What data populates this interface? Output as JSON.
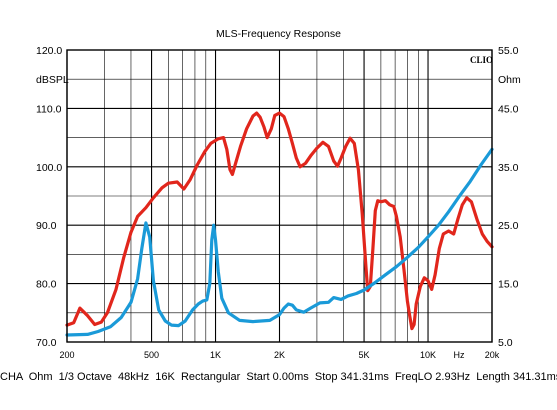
{
  "chart_data": {
    "type": "line",
    "title": "MLS-Frequency Response",
    "brand": "CLIO",
    "left_axis": {
      "unit": "dBSPL",
      "range": [
        70,
        120
      ],
      "ticks": [
        {
          "value": 120,
          "label": "120.0"
        },
        {
          "value": 110,
          "label": "110.0"
        },
        {
          "value": 100,
          "label": "100.0"
        },
        {
          "value": 90,
          "label": "90.0"
        },
        {
          "value": 80,
          "label": "80.0"
        },
        {
          "value": 70,
          "label": "70.0"
        }
      ]
    },
    "right_axis": {
      "unit": "Ohm",
      "range": [
        5,
        55
      ],
      "ticks": [
        {
          "value": 55,
          "label": "55.0"
        },
        {
          "value": 45,
          "label": "45.0"
        },
        {
          "value": 35,
          "label": "35.0"
        },
        {
          "value": 25,
          "label": "25.0"
        },
        {
          "value": 15,
          "label": "15.0"
        },
        {
          "value": 5,
          "label": "5.0"
        }
      ]
    },
    "x_axis": {
      "scale": "log",
      "unit": "Hz",
      "range": [
        200,
        20000
      ],
      "ticks": [
        {
          "value": 200,
          "label": "200"
        },
        {
          "value": 500,
          "label": "500"
        },
        {
          "value": 1000,
          "label": "1K"
        },
        {
          "value": 2000,
          "label": "2K"
        },
        {
          "value": 5000,
          "label": "5K"
        },
        {
          "value": 10000,
          "label": "10K"
        },
        {
          "value": 20000,
          "label": "20k"
        }
      ],
      "grid": true
    },
    "series": [
      {
        "axis": "left",
        "color": "#e1261c",
        "points": [
          [
            200,
            72.9
          ],
          [
            215,
            73.3
          ],
          [
            230,
            75.8
          ],
          [
            250,
            74.5
          ],
          [
            270,
            73.0
          ],
          [
            290,
            73.4
          ],
          [
            310,
            75.0
          ],
          [
            340,
            79.0
          ],
          [
            370,
            84.5
          ],
          [
            400,
            88.8
          ],
          [
            430,
            91.5
          ],
          [
            470,
            93.0
          ],
          [
            510,
            94.7
          ],
          [
            560,
            96.4
          ],
          [
            600,
            97.2
          ],
          [
            660,
            97.4
          ],
          [
            710,
            96.2
          ],
          [
            760,
            97.8
          ],
          [
            820,
            100.3
          ],
          [
            890,
            102.6
          ],
          [
            950,
            104.0
          ],
          [
            1030,
            104.8
          ],
          [
            1090,
            105.0
          ],
          [
            1130,
            103.0
          ],
          [
            1170,
            99.5
          ],
          [
            1200,
            98.7
          ],
          [
            1240,
            100.5
          ],
          [
            1310,
            103.5
          ],
          [
            1400,
            106.5
          ],
          [
            1500,
            108.7
          ],
          [
            1560,
            109.2
          ],
          [
            1620,
            108.5
          ],
          [
            1690,
            106.8
          ],
          [
            1750,
            105.0
          ],
          [
            1830,
            106.5
          ],
          [
            1900,
            108.8
          ],
          [
            2000,
            109.2
          ],
          [
            2100,
            108.6
          ],
          [
            2200,
            106.5
          ],
          [
            2300,
            104.0
          ],
          [
            2400,
            101.5
          ],
          [
            2500,
            100.0
          ],
          [
            2650,
            100.6
          ],
          [
            2820,
            102.0
          ],
          [
            3000,
            103.2
          ],
          [
            3200,
            104.2
          ],
          [
            3400,
            103.5
          ],
          [
            3600,
            101.0
          ],
          [
            3750,
            100.1
          ],
          [
            3900,
            101.5
          ],
          [
            4100,
            103.5
          ],
          [
            4300,
            104.9
          ],
          [
            4500,
            104.0
          ],
          [
            4700,
            99.5
          ],
          [
            4900,
            92.0
          ],
          [
            5100,
            83.0
          ],
          [
            5200,
            78.8
          ],
          [
            5350,
            79.5
          ],
          [
            5500,
            86.0
          ],
          [
            5650,
            92.5
          ],
          [
            5800,
            94.2
          ],
          [
            6000,
            94.0
          ],
          [
            6300,
            94.2
          ],
          [
            6600,
            93.5
          ],
          [
            6900,
            93.2
          ],
          [
            7100,
            91.5
          ],
          [
            7400,
            88.0
          ],
          [
            7700,
            82.5
          ],
          [
            8000,
            77.0
          ],
          [
            8200,
            74.5
          ],
          [
            8400,
            72.3
          ],
          [
            8600,
            73.0
          ],
          [
            8800,
            76.5
          ],
          [
            9200,
            79.5
          ],
          [
            9600,
            81.0
          ],
          [
            10000,
            80.5
          ],
          [
            10400,
            79.0
          ],
          [
            10800,
            81.5
          ],
          [
            11300,
            86.0
          ],
          [
            11800,
            88.5
          ],
          [
            12500,
            89.0
          ],
          [
            13200,
            88.5
          ],
          [
            13800,
            91.0
          ],
          [
            14500,
            93.5
          ],
          [
            15200,
            94.7
          ],
          [
            16000,
            94.0
          ],
          [
            17000,
            91.0
          ],
          [
            18000,
            88.5
          ],
          [
            19000,
            87.2
          ],
          [
            20000,
            86.3
          ]
        ]
      },
      {
        "axis": "right",
        "color": "#1a9ad8",
        "points": [
          [
            200,
            6.2
          ],
          [
            250,
            6.3
          ],
          [
            280,
            6.8
          ],
          [
            320,
            7.6
          ],
          [
            360,
            9.2
          ],
          [
            400,
            11.8
          ],
          [
            430,
            15.8
          ],
          [
            450,
            21.0
          ],
          [
            470,
            25.4
          ],
          [
            490,
            23.0
          ],
          [
            510,
            15.5
          ],
          [
            540,
            10.5
          ],
          [
            580,
            8.6
          ],
          [
            620,
            7.9
          ],
          [
            670,
            7.8
          ],
          [
            720,
            8.6
          ],
          [
            780,
            10.5
          ],
          [
            830,
            11.5
          ],
          [
            870,
            12.0
          ],
          [
            910,
            12.2
          ],
          [
            940,
            15.0
          ],
          [
            960,
            22.5
          ],
          [
            980,
            25.0
          ],
          [
            1000,
            22.5
          ],
          [
            1030,
            17.0
          ],
          [
            1070,
            12.5
          ],
          [
            1150,
            10.0
          ],
          [
            1300,
            8.7
          ],
          [
            1500,
            8.5
          ],
          [
            1800,
            8.7
          ],
          [
            2000,
            9.7
          ],
          [
            2100,
            10.8
          ],
          [
            2200,
            11.5
          ],
          [
            2300,
            11.3
          ],
          [
            2400,
            10.5
          ],
          [
            2600,
            10.1
          ],
          [
            2800,
            10.8
          ],
          [
            3100,
            11.7
          ],
          [
            3400,
            11.8
          ],
          [
            3600,
            12.6
          ],
          [
            3900,
            12.3
          ],
          [
            4200,
            12.9
          ],
          [
            4600,
            13.3
          ],
          [
            5000,
            13.9
          ],
          [
            5600,
            15.1
          ],
          [
            6300,
            16.5
          ],
          [
            7100,
            17.9
          ],
          [
            8000,
            19.5
          ],
          [
            9000,
            21.2
          ],
          [
            10000,
            23.0
          ],
          [
            11200,
            25.0
          ],
          [
            12500,
            27.3
          ],
          [
            14000,
            29.9
          ],
          [
            15800,
            32.5
          ],
          [
            17800,
            35.4
          ],
          [
            20000,
            38.0
          ]
        ]
      }
    ]
  },
  "footer": "CHA  Ohm  1/3 Octave  48kHz  16K  Rectangular  Start 0.00ms  Stop 341.31ms  FreqLO 2.93Hz  Length 341.31ms"
}
